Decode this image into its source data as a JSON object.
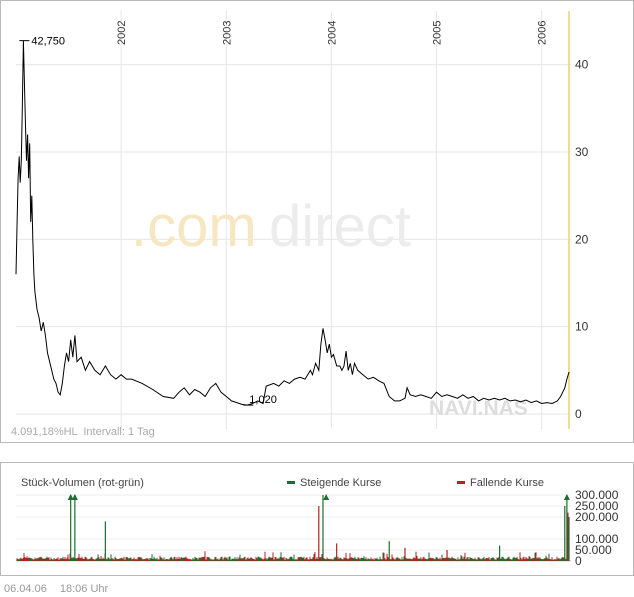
{
  "chart_data": [
    {
      "type": "line",
      "years": [
        "2002",
        "2003",
        "2004",
        "2005",
        "2006"
      ],
      "y_ticks": [
        "0",
        "10",
        "20",
        "30",
        "40"
      ],
      "ylim": [
        0,
        45
      ],
      "max_label": "42,750",
      "min_label": "1,020",
      "watermark_prefix": ".com",
      "watermark_suffix": "direct",
      "ticker": "NAVI.NAS",
      "info": "4.091,18%HL  Intervall: 1 Tag",
      "series": [
        {
          "values": [
            [
              2001.0,
              16.0
            ],
            [
              2001.01,
              22.0
            ],
            [
              2001.02,
              27.0
            ],
            [
              2001.03,
              29.5
            ],
            [
              2001.04,
              26.5
            ],
            [
              2001.05,
              29.0
            ],
            [
              2001.06,
              35.0
            ],
            [
              2001.07,
              42.75
            ],
            [
              2001.08,
              38.0
            ],
            [
              2001.09,
              33.0
            ],
            [
              2001.1,
              29.0
            ],
            [
              2001.11,
              32.0
            ],
            [
              2001.12,
              27.0
            ],
            [
              2001.13,
              31.0
            ],
            [
              2001.14,
              22.0
            ],
            [
              2001.15,
              25.0
            ],
            [
              2001.16,
              20.0
            ],
            [
              2001.17,
              16.0
            ],
            [
              2001.18,
              14.0
            ],
            [
              2001.2,
              12.0
            ],
            [
              2001.22,
              11.0
            ],
            [
              2001.24,
              9.5
            ],
            [
              2001.26,
              10.5
            ],
            [
              2001.28,
              9.0
            ],
            [
              2001.3,
              7.0
            ],
            [
              2001.32,
              6.0
            ],
            [
              2001.34,
              5.0
            ],
            [
              2001.36,
              4.0
            ],
            [
              2001.38,
              3.5
            ],
            [
              2001.4,
              2.5
            ],
            [
              2001.42,
              2.2
            ],
            [
              2001.44,
              3.5
            ],
            [
              2001.46,
              5.5
            ],
            [
              2001.48,
              7.0
            ],
            [
              2001.5,
              6.0
            ],
            [
              2001.52,
              8.5
            ],
            [
              2001.54,
              6.5
            ],
            [
              2001.56,
              9.0
            ],
            [
              2001.58,
              6.0
            ],
            [
              2001.62,
              6.5
            ],
            [
              2001.66,
              5.0
            ],
            [
              2001.7,
              6.0
            ],
            [
              2001.75,
              5.0
            ],
            [
              2001.8,
              4.5
            ],
            [
              2001.85,
              5.5
            ],
            [
              2001.9,
              4.5
            ],
            [
              2001.95,
              4.0
            ],
            [
              2002.0,
              4.5
            ],
            [
              2002.05,
              4.0
            ],
            [
              2002.1,
              4.0
            ],
            [
              2002.2,
              3.5
            ],
            [
              2002.3,
              2.8
            ],
            [
              2002.4,
              2.0
            ],
            [
              2002.5,
              1.8
            ],
            [
              2002.55,
              2.5
            ],
            [
              2002.6,
              3.0
            ],
            [
              2002.65,
              2.2
            ],
            [
              2002.7,
              2.8
            ],
            [
              2002.75,
              2.5
            ],
            [
              2002.8,
              2.0
            ],
            [
              2002.85,
              3.0
            ],
            [
              2002.9,
              3.5
            ],
            [
              2002.95,
              2.5
            ],
            [
              2003.0,
              2.0
            ],
            [
              2003.05,
              1.5
            ],
            [
              2003.1,
              1.3
            ],
            [
              2003.15,
              1.1
            ],
            [
              2003.2,
              1.02
            ],
            [
              2003.25,
              1.2
            ],
            [
              2003.3,
              1.5
            ],
            [
              2003.35,
              1.2
            ],
            [
              2003.38,
              3.2
            ],
            [
              2003.45,
              3.5
            ],
            [
              2003.5,
              3.2
            ],
            [
              2003.55,
              3.8
            ],
            [
              2003.6,
              3.5
            ],
            [
              2003.65,
              4.0
            ],
            [
              2003.7,
              4.2
            ],
            [
              2003.75,
              4.0
            ],
            [
              2003.8,
              5.0
            ],
            [
              2003.82,
              4.5
            ],
            [
              2003.85,
              5.8
            ],
            [
              2003.88,
              5.0
            ],
            [
              2003.9,
              8.0
            ],
            [
              2003.92,
              9.8
            ],
            [
              2003.94,
              8.5
            ],
            [
              2003.96,
              7.0
            ],
            [
              2003.98,
              8.0
            ],
            [
              2004.0,
              6.5
            ],
            [
              2004.02,
              6.8
            ],
            [
              2004.05,
              5.5
            ],
            [
              2004.08,
              5.5
            ],
            [
              2004.1,
              5.0
            ],
            [
              2004.12,
              5.5
            ],
            [
              2004.14,
              7.2
            ],
            [
              2004.16,
              5.0
            ],
            [
              2004.18,
              5.8
            ],
            [
              2004.2,
              4.5
            ],
            [
              2004.22,
              5.8
            ],
            [
              2004.25,
              5.0
            ],
            [
              2004.3,
              4.5
            ],
            [
              2004.35,
              4.0
            ],
            [
              2004.4,
              4.2
            ],
            [
              2004.45,
              3.8
            ],
            [
              2004.5,
              3.5
            ],
            [
              2004.55,
              2.0
            ],
            [
              2004.6,
              1.5
            ],
            [
              2004.65,
              1.5
            ],
            [
              2004.7,
              1.8
            ],
            [
              2004.72,
              3.0
            ],
            [
              2004.75,
              2.2
            ],
            [
              2004.8,
              2.0
            ],
            [
              2004.85,
              2.2
            ],
            [
              2004.9,
              2.0
            ],
            [
              2004.95,
              1.8
            ],
            [
              2005.0,
              2.5
            ],
            [
              2005.05,
              2.0
            ],
            [
              2005.1,
              2.2
            ],
            [
              2005.15,
              2.0
            ],
            [
              2005.2,
              1.8
            ],
            [
              2005.25,
              2.2
            ],
            [
              2005.3,
              1.8
            ],
            [
              2005.35,
              2.0
            ],
            [
              2005.4,
              1.5
            ],
            [
              2005.45,
              1.8
            ],
            [
              2005.5,
              1.6
            ],
            [
              2005.55,
              1.8
            ],
            [
              2005.6,
              1.6
            ],
            [
              2005.65,
              1.8
            ],
            [
              2005.7,
              1.5
            ],
            [
              2005.75,
              1.6
            ],
            [
              2005.8,
              1.4
            ],
            [
              2005.85,
              1.6
            ],
            [
              2005.9,
              1.3
            ],
            [
              2005.95,
              1.5
            ],
            [
              2006.0,
              1.2
            ],
            [
              2006.05,
              1.3
            ],
            [
              2006.1,
              1.2
            ],
            [
              2006.15,
              1.5
            ],
            [
              2006.18,
              2.0
            ],
            [
              2006.2,
              2.5
            ],
            [
              2006.22,
              3.0
            ],
            [
              2006.24,
              4.0
            ],
            [
              2006.26,
              4.8
            ]
          ]
        }
      ]
    },
    {
      "type": "bar",
      "title": "Stück-Volumen (rot-grün)",
      "legend": [
        {
          "label": "Steigende Kurse",
          "color": "#1a6e2e"
        },
        {
          "label": "Fallende Kurse",
          "color": "#b22222"
        }
      ],
      "y_ticks": [
        "0",
        "50.000",
        "100.000",
        "200.000",
        "250.000",
        "300.000"
      ],
      "ylim": [
        0,
        300000
      ],
      "overflow_markers": [
        2001.52,
        2001.56,
        2003.95,
        2006.24
      ],
      "spikes": [
        {
          "x": 2001.52,
          "v": 300000,
          "up": true
        },
        {
          "x": 2001.56,
          "v": 300000,
          "up": true
        },
        {
          "x": 2001.85,
          "v": 180000,
          "up": true
        },
        {
          "x": 2003.88,
          "v": 250000,
          "up": false
        },
        {
          "x": 2003.92,
          "v": 300000,
          "up": true
        },
        {
          "x": 2004.05,
          "v": 80000,
          "up": false
        },
        {
          "x": 2004.55,
          "v": 90000,
          "up": true
        },
        {
          "x": 2004.7,
          "v": 60000,
          "up": false
        },
        {
          "x": 2005.1,
          "v": 50000,
          "up": false
        },
        {
          "x": 2005.6,
          "v": 70000,
          "up": true
        },
        {
          "x": 2006.22,
          "v": 250000,
          "up": true
        },
        {
          "x": 2006.24,
          "v": 300000,
          "up": true
        },
        {
          "x": 2006.25,
          "v": 220000,
          "up": false
        },
        {
          "x": 2006.26,
          "v": 200000,
          "up": true
        }
      ]
    }
  ],
  "footer": {
    "date": "06.04.06",
    "time": "18:06 Uhr"
  }
}
